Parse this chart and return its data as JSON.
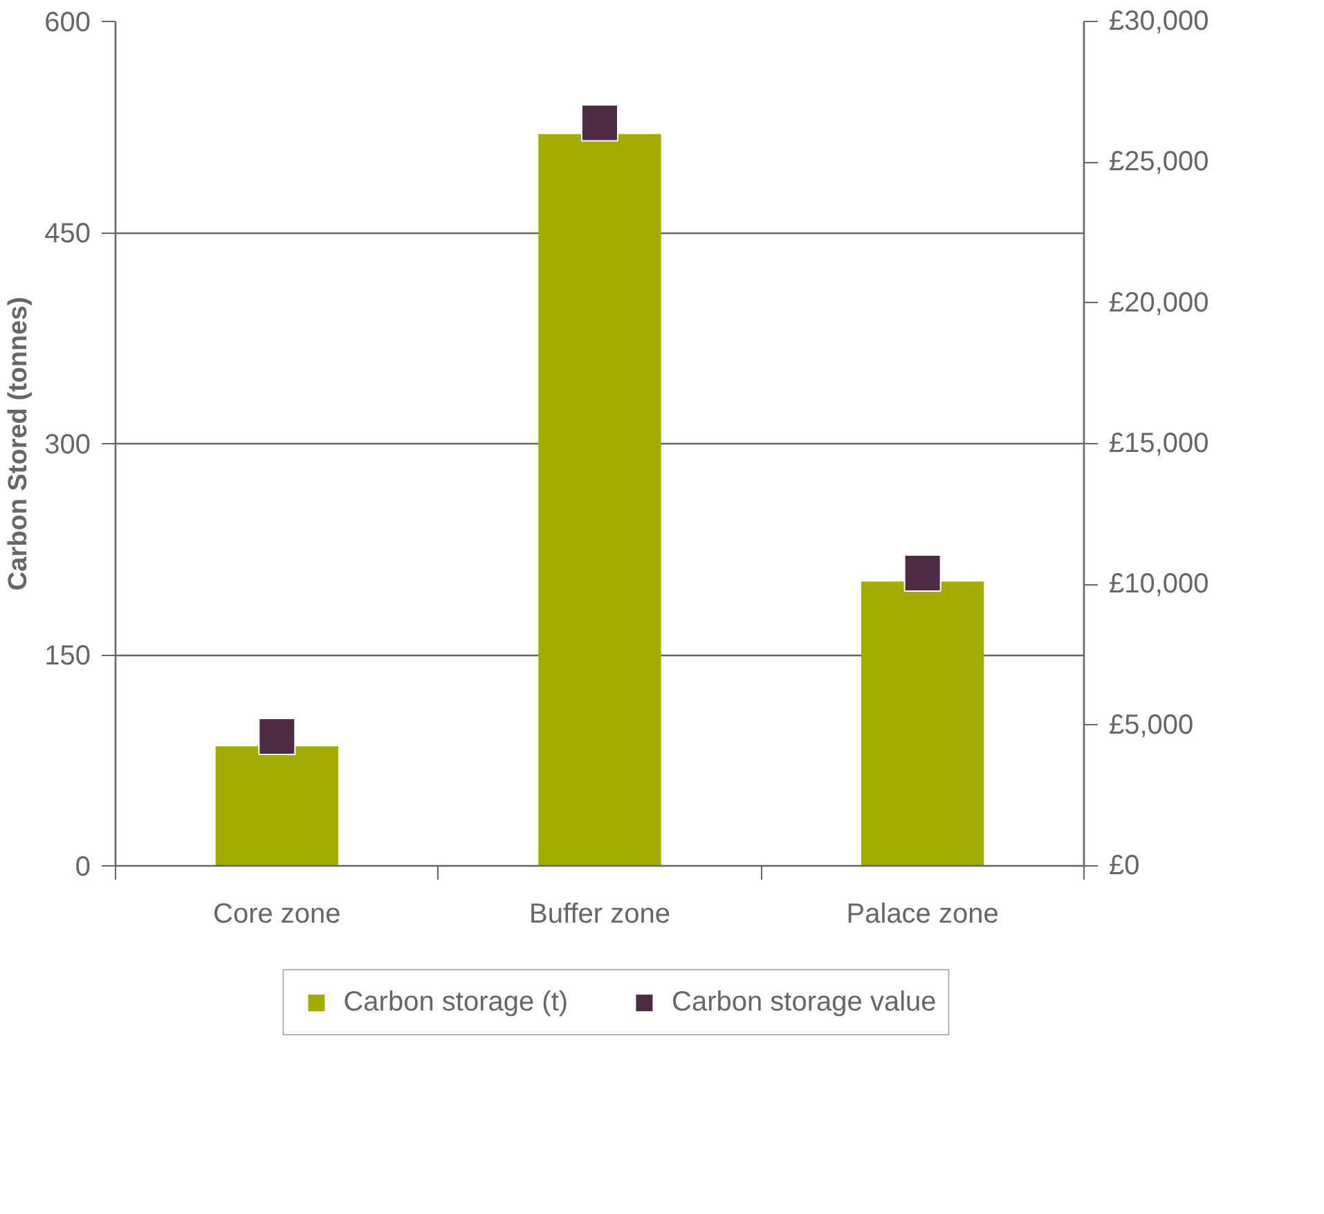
{
  "chart_data": {
    "type": "bar",
    "ylabel": "Carbon Stored (tonnes)",
    "categories": [
      "Core zone",
      "Buffer zone",
      "Palace zone"
    ],
    "series": [
      {
        "name": "Carbon storage (t)",
        "color": "#a2ad00",
        "values": [
          85,
          520,
          202
        ]
      },
      {
        "name": "Carbon storage value",
        "type": "scatter",
        "axis": "y2",
        "color": "#4e2a45",
        "values": [
          4600,
          26400,
          10400
        ]
      }
    ],
    "ylim": [
      0,
      600
    ],
    "yticks": [
      0,
      150,
      300,
      450,
      600
    ],
    "y2lim": [
      0,
      30000
    ],
    "y2ticks": [
      {
        "value": 0,
        "label": "£0"
      },
      {
        "value": 5000,
        "label": "£5,000"
      },
      {
        "value": 10000,
        "label": "£10,000"
      },
      {
        "value": 15000,
        "label": "£15,000"
      },
      {
        "value": 20000,
        "label": "£20,000"
      },
      {
        "value": 25000,
        "label": "£25,000"
      },
      {
        "value": 30000,
        "label": "£30,000"
      }
    ],
    "grid": "y",
    "legend": "bottom",
    "marker": "square"
  }
}
